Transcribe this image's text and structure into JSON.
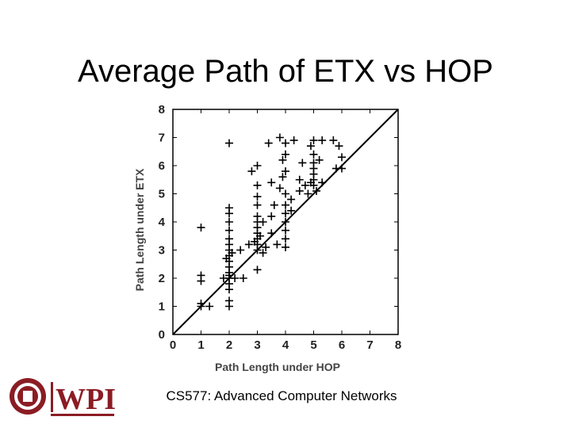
{
  "slide": {
    "title": "Average Path of ETX vs HOP",
    "footer": "CS577: Advanced Computer Networks"
  },
  "logo": {
    "text": "WPI",
    "color": "#8b1c24"
  },
  "chart_data": {
    "type": "scatter",
    "xlabel": "Path Length under HOP",
    "ylabel": "Path Length under ETX",
    "xlim": [
      0,
      8
    ],
    "ylim": [
      0,
      8
    ],
    "x_ticks": [
      "0",
      "1",
      "2",
      "3",
      "4",
      "5",
      "6",
      "7",
      "8"
    ],
    "y_ticks": [
      "0",
      "1",
      "2",
      "3",
      "4",
      "5",
      "6",
      "7",
      "8"
    ],
    "grid": false,
    "reference_line": {
      "from": [
        0,
        0
      ],
      "to": [
        8,
        8
      ]
    },
    "marker": "+",
    "points": [
      [
        1,
        1
      ],
      [
        1,
        1.1
      ],
      [
        1,
        1.9
      ],
      [
        1,
        2.1
      ],
      [
        1,
        3.8
      ],
      [
        1.3,
        1
      ],
      [
        2,
        1
      ],
      [
        2,
        1.2
      ],
      [
        2,
        1.6
      ],
      [
        2,
        1.8
      ],
      [
        2,
        2
      ],
      [
        2,
        2.1
      ],
      [
        2,
        2.2
      ],
      [
        2,
        2.4
      ],
      [
        2,
        2.6
      ],
      [
        2,
        2.8
      ],
      [
        2,
        3
      ],
      [
        2,
        3.2
      ],
      [
        2,
        3.4
      ],
      [
        2,
        3.7
      ],
      [
        2,
        4
      ],
      [
        2,
        4.3
      ],
      [
        2,
        4.5
      ],
      [
        2,
        6.8
      ],
      [
        1.8,
        2
      ],
      [
        2.2,
        2
      ],
      [
        1.9,
        2.7
      ],
      [
        2.1,
        2.9
      ],
      [
        2.4,
        3
      ],
      [
        2.5,
        2
      ],
      [
        2.7,
        3.2
      ],
      [
        2.8,
        5.8
      ],
      [
        3,
        6
      ],
      [
        3,
        3
      ],
      [
        3,
        3.2
      ],
      [
        3,
        3.4
      ],
      [
        3,
        3.6
      ],
      [
        3,
        3.8
      ],
      [
        3,
        4
      ],
      [
        3,
        4.2
      ],
      [
        3,
        4.6
      ],
      [
        3,
        4.9
      ],
      [
        3,
        5.3
      ],
      [
        3,
        2.3
      ],
      [
        2.9,
        3.3
      ],
      [
        3.1,
        3.5
      ],
      [
        3.2,
        4
      ],
      [
        3.3,
        3.1
      ],
      [
        3.2,
        2.9
      ],
      [
        3.5,
        5.4
      ],
      [
        3.6,
        4.6
      ],
      [
        3.5,
        4.2
      ],
      [
        3.5,
        3.6
      ],
      [
        3.4,
        6.8
      ],
      [
        3.8,
        7
      ],
      [
        3.9,
        6.2
      ],
      [
        3.9,
        5.6
      ],
      [
        4,
        6.8
      ],
      [
        4,
        6.4
      ],
      [
        4,
        5.8
      ],
      [
        4,
        5
      ],
      [
        4,
        4.6
      ],
      [
        4,
        4.3
      ],
      [
        4,
        4
      ],
      [
        4,
        3.7
      ],
      [
        4,
        3.4
      ],
      [
        4,
        3.1
      ],
      [
        3.8,
        5.2
      ],
      [
        3.7,
        3.2
      ],
      [
        4.2,
        4.8
      ],
      [
        4.3,
        6.9
      ],
      [
        4.2,
        4.4
      ],
      [
        4.5,
        5.5
      ],
      [
        4.5,
        5.1
      ],
      [
        4.6,
        6.1
      ],
      [
        4.7,
        5.3
      ],
      [
        4.8,
        5
      ],
      [
        4.9,
        5.4
      ],
      [
        4.9,
        6.7
      ],
      [
        5,
        6.9
      ],
      [
        5,
        6.4
      ],
      [
        5,
        6.1
      ],
      [
        5,
        5.9
      ],
      [
        5,
        5.7
      ],
      [
        5,
        5.5
      ],
      [
        5,
        5.3
      ],
      [
        5.2,
        6.2
      ],
      [
        5.3,
        5.4
      ],
      [
        5.3,
        6.9
      ],
      [
        5.1,
        5.1
      ],
      [
        5.7,
        6.9
      ],
      [
        5.9,
        6.7
      ],
      [
        6,
        6.3
      ],
      [
        6,
        5.9
      ],
      [
        5.8,
        5.9
      ]
    ]
  }
}
